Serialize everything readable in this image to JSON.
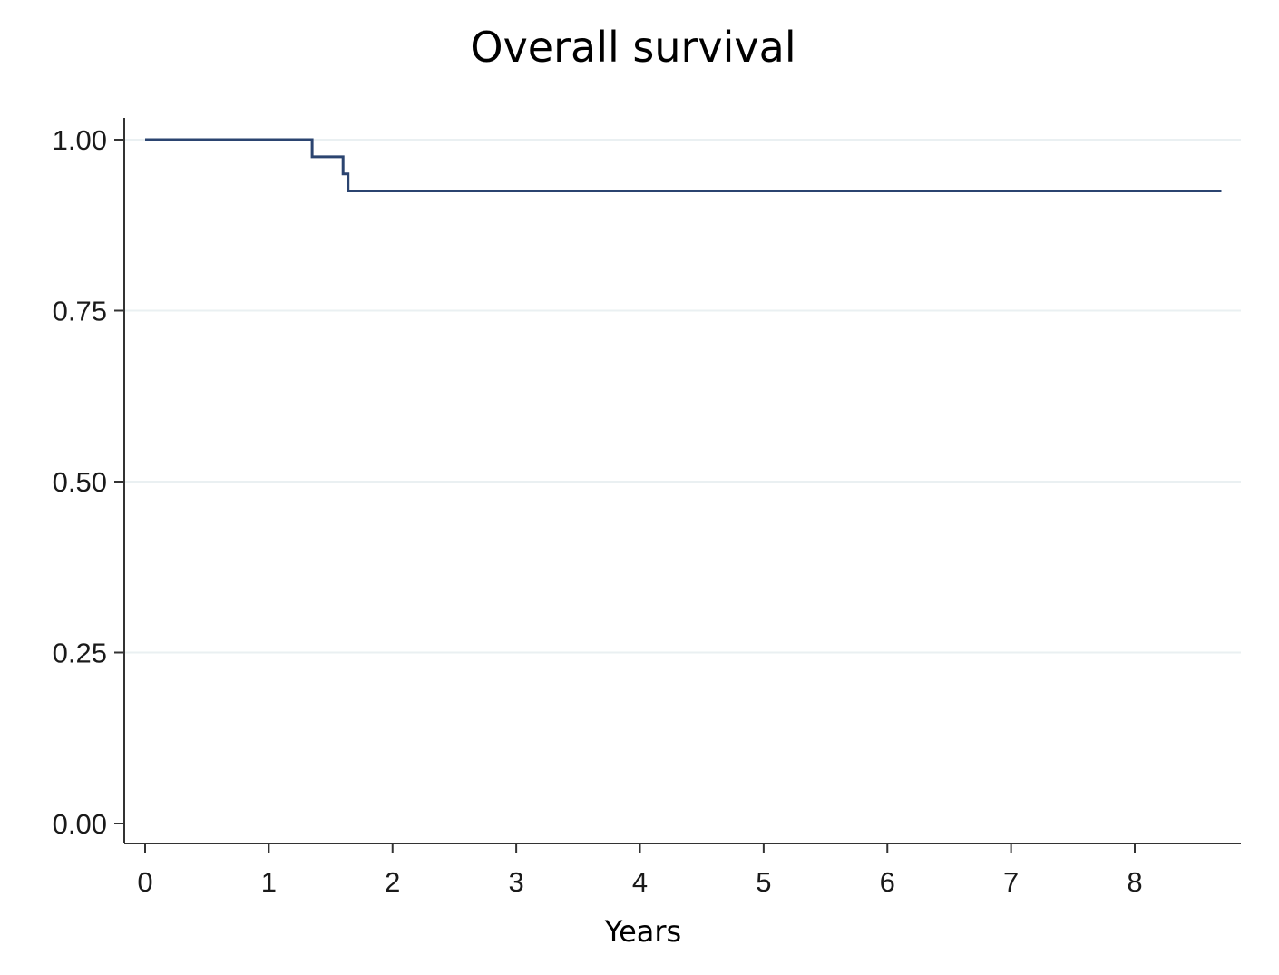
{
  "chart_data": {
    "type": "line",
    "title": "Overall survival",
    "xlabel": "Years",
    "ylabel": "",
    "xlim": [
      0,
      8.7
    ],
    "ylim": [
      0,
      1
    ],
    "x_ticks": [
      0,
      1,
      2,
      3,
      4,
      5,
      6,
      7,
      8
    ],
    "x_tick_labels": [
      "0",
      "1",
      "2",
      "3",
      "4",
      "5",
      "6",
      "7",
      "8"
    ],
    "y_ticks": [
      0,
      0.25,
      0.5,
      0.75,
      1
    ],
    "y_tick_labels": [
      "0.00",
      "0.25",
      "0.50",
      "0.75",
      "1.00"
    ],
    "grid": true,
    "step": true,
    "series": [
      {
        "color": "#2b4470",
        "x": [
          0,
          1.35,
          1.6,
          1.64,
          8.7
        ],
        "y": [
          1.0,
          0.975,
          0.95,
          0.925,
          0.925
        ]
      }
    ]
  }
}
